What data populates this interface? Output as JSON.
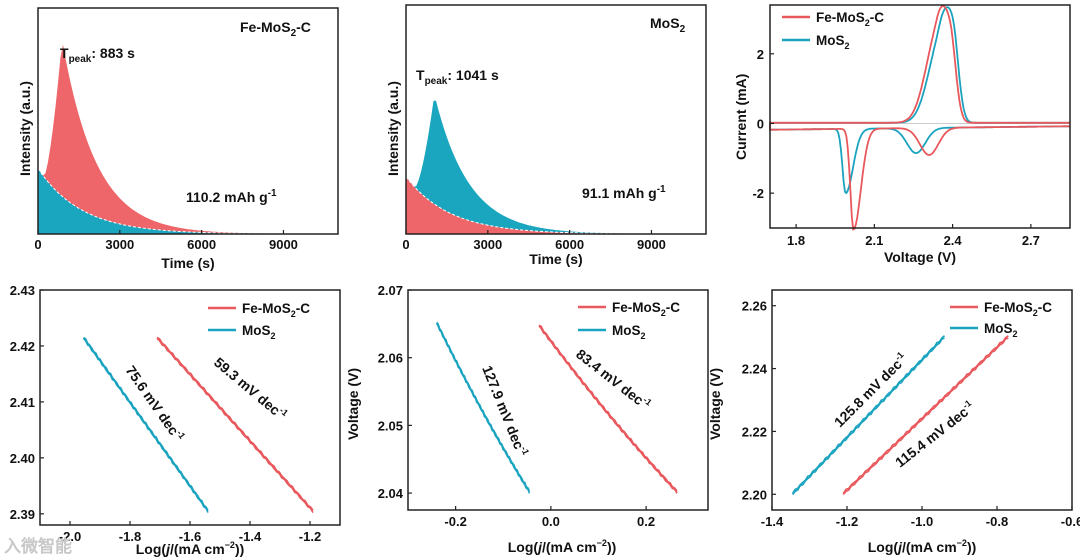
{
  "colors": {
    "fe": "#e8585c",
    "mos": "#1aa3bf",
    "fe_fill": "#ee6669",
    "mos_fill": "#1ba6c0"
  },
  "watermark": "入微智能",
  "chart_data": [
    {
      "id": "p1",
      "type": "area",
      "title": "Fe-MoS2-C",
      "xlabel": "Time (s)",
      "ylabel": "Intensity (a.u.)",
      "xlim": [
        0,
        11000
      ],
      "xticks": [
        0,
        3000,
        6000,
        9000
      ],
      "peak": {
        "label_prefix": "T",
        "label_sub": "peak",
        "label_value": ": 883 s",
        "x": 883
      },
      "capacity": {
        "value": "110.2 mAh g",
        "sup": "-1"
      },
      "series": [
        {
          "name": "Fe-MoS2-C",
          "role": "peak",
          "peak_x": 883,
          "peak_y": 0.86,
          "start_x": 220
        },
        {
          "name": "baseline",
          "role": "decay",
          "y0": 0.29
        }
      ]
    },
    {
      "id": "p2",
      "type": "area",
      "title": "MoS2",
      "xlabel": "Time (s)",
      "ylabel": "Intensity (a.u.)",
      "xlim": [
        0,
        11000
      ],
      "xticks": [
        0,
        3000,
        6000,
        9000
      ],
      "peak": {
        "label_prefix": "T",
        "label_sub": "peak",
        "label_value": ": 1041 s",
        "x": 1041
      },
      "capacity": {
        "value": "91.1 mAh g",
        "sup": "-1"
      },
      "series": [
        {
          "name": "MoS2",
          "role": "peak",
          "peak_x": 1041,
          "peak_y": 0.61,
          "start_x": 330
        },
        {
          "name": "baseline",
          "role": "decay",
          "y0": 0.25
        }
      ]
    },
    {
      "id": "p3",
      "type": "line",
      "xlabel": "Voltage (V)",
      "ylabel": "Current (mA)",
      "xlim": [
        1.7,
        2.85
      ],
      "ylim": [
        -3.0,
        3.4
      ],
      "xticks": [
        "1.8",
        "2.1",
        "2.4",
        "2.7"
      ],
      "yticks": [
        "2",
        "0",
        "-2"
      ],
      "legend": [
        "Fe-MoS2-C",
        "MoS2"
      ],
      "series": [
        {
          "name": "Fe-MoS2-C",
          "cathodic_peaks": [
            [
              2.02,
              -2.9
            ],
            [
              2.31,
              -0.78
            ]
          ],
          "anodic_peaks": [
            [
              2.34,
              2.42
            ],
            [
              2.39,
              2.32
            ]
          ]
        },
        {
          "name": "MoS2",
          "cathodic_peaks": [
            [
              1.99,
              -1.85
            ],
            [
              2.26,
              -0.72
            ]
          ],
          "anodic_peaks": [
            [
              2.35,
              2.2
            ],
            [
              2.4,
              2.48
            ]
          ]
        }
      ]
    },
    {
      "id": "p4",
      "type": "line",
      "xlabel": "Log(j/(mA cm-2))",
      "ylabel": "",
      "xlim": [
        -2.1,
        -1.1
      ],
      "ylim": [
        2.388,
        2.43
      ],
      "xticks": [
        "-2.0",
        "-1.8",
        "-1.6",
        "-1.4",
        "-1.2"
      ],
      "yticks": [
        "2.43",
        "2.42",
        "2.41",
        "2.40",
        "2.39"
      ],
      "legend": [
        "Fe-MoS2-C",
        "MoS2"
      ],
      "series": [
        {
          "name": "MoS2",
          "x": [
            -1.955,
            -1.54
          ],
          "y": [
            2.4215,
            2.3905
          ],
          "slope_label": "75.6 mV dec",
          "sup": "-1"
        },
        {
          "name": "Fe-MoS2-C",
          "x": [
            -1.71,
            -1.19
          ],
          "y": [
            2.4215,
            2.3905
          ],
          "slope_label": "59.3 mV dec",
          "sup": "-1"
        }
      ]
    },
    {
      "id": "p5",
      "type": "line",
      "xlabel": "Log(j/(mA cm-2))",
      "ylabel": "Voltage (V)",
      "xlim": [
        -0.3,
        0.33
      ],
      "ylim": [
        2.0375,
        2.07
      ],
      "xticks": [
        "-0.2",
        "0.0",
        "0.2"
      ],
      "yticks": [
        "2.07",
        "2.06",
        "2.05",
        "2.04"
      ],
      "legend": [
        "Fe-MoS2-C",
        "MoS2"
      ],
      "series": [
        {
          "name": "MoS2",
          "x": [
            -0.24,
            -0.045
          ],
          "y": [
            2.0652,
            2.0402
          ],
          "slope_label": "127.9 mV dec",
          "sup": "-1"
        },
        {
          "name": "Fe-MoS2-C",
          "x": [
            -0.025,
            0.265
          ],
          "y": [
            2.0648,
            2.0402
          ],
          "slope_label": "83.4 mV dec",
          "sup": "-1"
        }
      ]
    },
    {
      "id": "p6",
      "type": "line",
      "xlabel": "Log(j/(mA cm-2))",
      "ylabel": "Voltage (V)",
      "xlim": [
        -1.4,
        -0.6
      ],
      "ylim": [
        2.195,
        2.265
      ],
      "xticks": [
        "-1.4",
        "-1.2",
        "-1.0",
        "-0.8",
        "-0.6"
      ],
      "yticks": [
        "2.26",
        "2.24",
        "2.22",
        "2.20"
      ],
      "legend": [
        "Fe-MoS2-C",
        "MoS2"
      ],
      "series": [
        {
          "name": "MoS2",
          "x": [
            -1.345,
            -0.94
          ],
          "y": [
            2.2002,
            2.2502
          ],
          "slope_label": "125.8 mV dec",
          "sup": "-1"
        },
        {
          "name": "Fe-MoS2-C",
          "x": [
            -1.21,
            -0.77
          ],
          "y": [
            2.2002,
            2.2502
          ],
          "slope_label": "115.4 mV dec",
          "sup": "-1"
        }
      ]
    }
  ]
}
